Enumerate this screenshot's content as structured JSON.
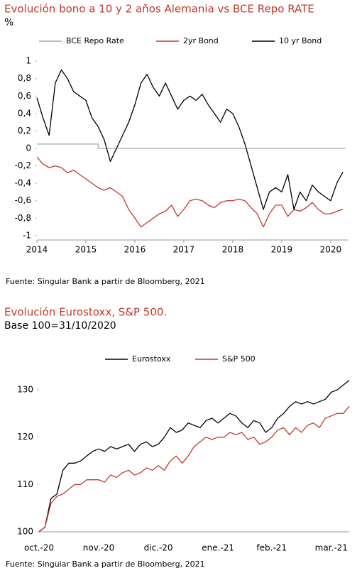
{
  "chart_data": [
    {
      "type": "line",
      "title": "Evolución bono a 10 y 2 años Alemania vs BCE Repo RATE",
      "subtitle": "%",
      "source": "Fuente: Singular Bank a partir de Bloomberg, 2021",
      "xlim": [
        2014,
        2020.35
      ],
      "xticks": [
        2014,
        2015,
        2016,
        2017,
        2018,
        2019,
        2020
      ],
      "ylim": [
        -1.05,
        1.05
      ],
      "yticks": [
        1,
        {
          "value": 0.8,
          "label": "0,8"
        },
        {
          "value": 0.6,
          "label": "0,6"
        },
        {
          "value": 0.4,
          "label": "0,4"
        },
        {
          "value": 0.2,
          "label": "0,2"
        },
        0,
        {
          "value": -0.2,
          "label": "-0,2"
        },
        {
          "value": -0.4,
          "label": "-0,4"
        },
        {
          "value": -0.6,
          "label": "-0,6"
        },
        {
          "value": -0.8,
          "label": "-0,8"
        },
        -1
      ],
      "grid": false,
      "series": [
        {
          "name": "BCE Repo Rate",
          "color": "#a6a6a6",
          "x": [
            2014,
            2015.25,
            2015.25,
            2020.3
          ],
          "values": [
            0.05,
            0.05,
            0,
            0
          ]
        },
        {
          "name": "2yr Bond",
          "color": "#c0392b",
          "x": [
            2014,
            2014.125,
            2014.25,
            2014.375,
            2014.5,
            2014.625,
            2014.75,
            2014.875,
            2015,
            2015.125,
            2015.25,
            2015.375,
            2015.5,
            2015.625,
            2015.75,
            2015.875,
            2016,
            2016.125,
            2016.25,
            2016.375,
            2016.5,
            2016.625,
            2016.75,
            2016.875,
            2017,
            2017.125,
            2017.25,
            2017.375,
            2017.5,
            2017.625,
            2017.75,
            2017.875,
            2018,
            2018.125,
            2018.25,
            2018.375,
            2018.5,
            2018.625,
            2018.75,
            2018.875,
            2019,
            2019.125,
            2019.25,
            2019.375,
            2019.5,
            2019.625,
            2019.75,
            2019.875,
            2020,
            2020.125,
            2020.25
          ],
          "values": [
            -0.1,
            -0.18,
            -0.22,
            -0.2,
            -0.22,
            -0.28,
            -0.25,
            -0.3,
            -0.35,
            -0.4,
            -0.45,
            -0.48,
            -0.45,
            -0.5,
            -0.55,
            -0.7,
            -0.8,
            -0.9,
            -0.85,
            -0.8,
            -0.75,
            -0.72,
            -0.65,
            -0.78,
            -0.7,
            -0.6,
            -0.58,
            -0.6,
            -0.65,
            -0.68,
            -0.62,
            -0.6,
            -0.6,
            -0.58,
            -0.6,
            -0.68,
            -0.75,
            -0.9,
            -0.75,
            -0.65,
            -0.65,
            -0.78,
            -0.7,
            -0.72,
            -0.68,
            -0.62,
            -0.7,
            -0.75,
            -0.75,
            -0.72,
            -0.7
          ]
        },
        {
          "name": "10 yr Bond",
          "color": "#000000",
          "x": [
            2014,
            2014.125,
            2014.25,
            2014.375,
            2014.5,
            2014.625,
            2014.75,
            2014.875,
            2015,
            2015.125,
            2015.25,
            2015.375,
            2015.5,
            2015.625,
            2015.75,
            2015.875,
            2016,
            2016.125,
            2016.25,
            2016.375,
            2016.5,
            2016.625,
            2016.75,
            2016.875,
            2017,
            2017.125,
            2017.25,
            2017.375,
            2017.5,
            2017.625,
            2017.75,
            2017.875,
            2018,
            2018.125,
            2018.25,
            2018.375,
            2018.5,
            2018.625,
            2018.75,
            2018.875,
            2019,
            2019.125,
            2019.25,
            2019.375,
            2019.5,
            2019.625,
            2019.75,
            2019.875,
            2020,
            2020.125,
            2020.25
          ],
          "values": [
            0.58,
            0.35,
            0.15,
            0.75,
            0.9,
            0.8,
            0.65,
            0.6,
            0.55,
            0.35,
            0.25,
            0.1,
            -0.15,
            0.0,
            0.15,
            0.3,
            0.5,
            0.75,
            0.85,
            0.7,
            0.6,
            0.75,
            0.6,
            0.45,
            0.55,
            0.6,
            0.55,
            0.62,
            0.5,
            0.4,
            0.3,
            0.45,
            0.4,
            0.25,
            0.05,
            -0.2,
            -0.45,
            -0.7,
            -0.5,
            -0.45,
            -0.5,
            -0.3,
            -0.7,
            -0.5,
            -0.6,
            -0.42,
            -0.5,
            -0.55,
            -0.6,
            -0.4,
            -0.27
          ]
        }
      ]
    },
    {
      "type": "line",
      "title": "Evolución Eurostoxx, S&P 500.",
      "subtitle": "Base 100=31/10/2020",
      "source": "Fuente: Singular Bank a partir de Bloomberg, 2021",
      "categories": [
        "oct.-20",
        null,
        null,
        null,
        null,
        null,
        null,
        null,
        null,
        null,
        "nov.-20",
        null,
        null,
        null,
        null,
        null,
        null,
        null,
        null,
        null,
        "dic.-20",
        null,
        null,
        null,
        null,
        null,
        null,
        null,
        null,
        null,
        "ene.-21",
        null,
        null,
        null,
        null,
        null,
        null,
        null,
        null,
        "feb.-21",
        null,
        null,
        null,
        null,
        null,
        null,
        null,
        null,
        null,
        "mar.-21",
        null,
        null,
        null
      ],
      "ylim": [
        100,
        133
      ],
      "yticks": [
        100,
        110,
        120,
        130
      ],
      "grid": false,
      "series": [
        {
          "name": "Eurostoxx",
          "color": "#000000",
          "values": [
            100,
            101,
            107,
            108,
            113,
            114.5,
            114.5,
            115,
            116,
            117,
            117.5,
            117,
            118,
            117.5,
            118,
            118.5,
            117,
            118.5,
            119,
            118,
            118.5,
            120,
            122,
            121,
            121.5,
            123,
            122.5,
            122,
            123.5,
            124,
            123,
            124,
            125,
            124.5,
            123,
            122,
            123.5,
            123,
            121,
            122,
            124,
            125,
            126.5,
            127.5,
            127,
            127.5,
            127,
            127.5,
            128,
            129.5,
            130,
            131,
            132
          ]
        },
        {
          "name": "S&P 500",
          "color": "#c0392b",
          "values": [
            100,
            101,
            106,
            107.5,
            108,
            109,
            110,
            110,
            111,
            111,
            111,
            110.5,
            112,
            111.5,
            112.5,
            113,
            112,
            112.5,
            113.5,
            113,
            114,
            113,
            115,
            116,
            114.5,
            116,
            118,
            119,
            120,
            119.5,
            120,
            120,
            121,
            120.5,
            121,
            119.5,
            120,
            118.5,
            119,
            120,
            121.5,
            122,
            120.5,
            122,
            121,
            122.5,
            123,
            122,
            124,
            124.5,
            125,
            125,
            126.5
          ]
        }
      ]
    }
  ]
}
